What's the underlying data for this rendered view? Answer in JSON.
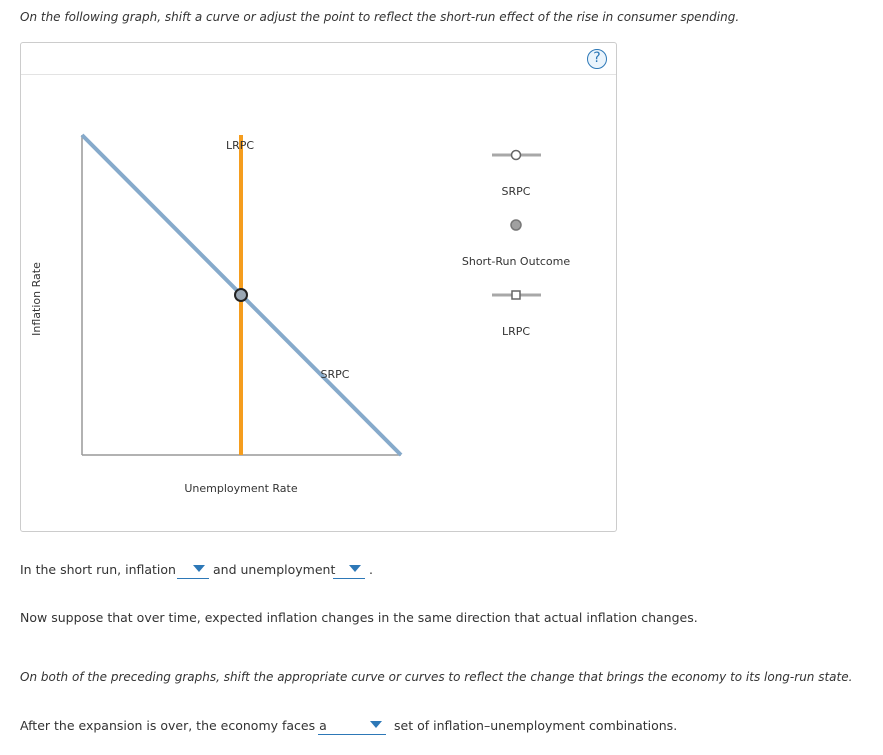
{
  "instruction_1": "On the following graph, shift a curve or adjust the point to reflect the short-run effect of the rise in consumer spending.",
  "help_icon": "question-mark-icon",
  "graph": {
    "y_axis_label": "Inflation Rate",
    "x_axis_label": "Unemployment Rate",
    "lrpc_label": "LRPC",
    "srpc_label": "SRPC",
    "colors": {
      "srpc": "#86aacb",
      "lrpc": "#f59d1e",
      "axes": "#999999",
      "point_fill": "#9aa7b4"
    }
  },
  "palette": {
    "srpc_tool_label": "SRPC",
    "outcome_tool_label": "Short-Run Outcome",
    "lrpc_tool_label": "LRPC"
  },
  "question_1": {
    "prefix": "In the short run, inflation",
    "middle": "and unemployment",
    "suffix": ".",
    "dropdown_1_value": "",
    "dropdown_2_value": ""
  },
  "paragraph_2": "Now suppose that over time, expected inflation changes in the same direction that actual inflation changes.",
  "instruction_2": "On both of the preceding graphs, shift the appropriate curve or curves to reflect the change that brings the economy to its long-run state.",
  "question_2": {
    "prefix": "After the expansion is over, the economy faces a",
    "suffix": "set of inflation–unemployment combinations.",
    "dropdown_value": ""
  }
}
